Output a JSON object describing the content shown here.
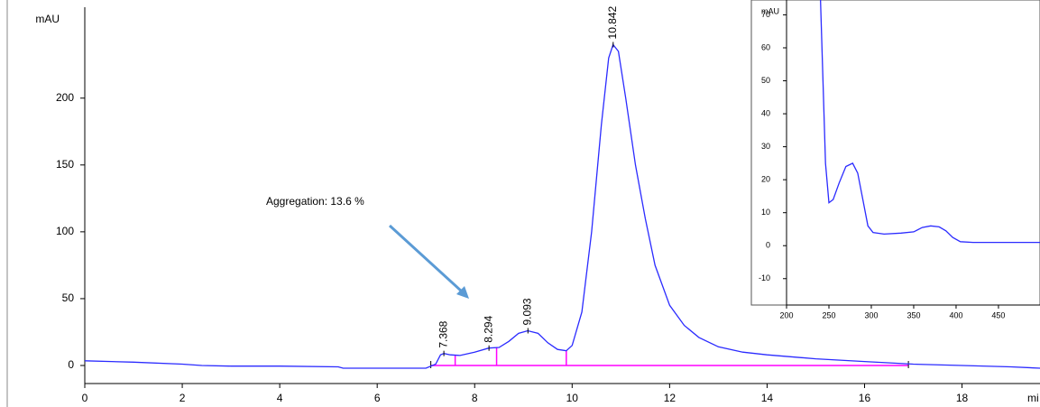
{
  "chart_data": [
    {
      "type": "line",
      "ylabel": "mAU",
      "xlabel": "mi",
      "x": [
        0,
        1,
        2,
        2.4,
        3,
        4,
        5.2,
        5.3,
        6.5,
        7,
        7.2,
        7.3,
        7.37,
        7.5,
        7.7,
        8,
        8.29,
        8.5,
        8.7,
        8.9,
        9.09,
        9.3,
        9.5,
        9.7,
        9.88,
        10,
        10.2,
        10.4,
        10.6,
        10.75,
        10.84,
        10.95,
        11.1,
        11.3,
        11.5,
        11.7,
        12,
        12.3,
        12.6,
        13,
        13.5,
        14,
        15,
        16,
        17,
        18,
        19,
        19.6
      ],
      "series": [
        {
          "color": "#2b2bff",
          "values": [
            3.5,
            2.5,
            1,
            0,
            -0.5,
            -0.5,
            -1,
            -2,
            -2,
            -2,
            1,
            8,
            9,
            8,
            7.5,
            10,
            13,
            13.5,
            18,
            24,
            26,
            24,
            17,
            12,
            11,
            15,
            40,
            100,
            180,
            230,
            240,
            235,
            200,
            150,
            110,
            75,
            45,
            30,
            21,
            14,
            10,
            8,
            5,
            3,
            1,
            0,
            -1,
            -2
          ]
        }
      ],
      "peaks": {
        "x": [
          7.368,
          8.294,
          9.093,
          10.842
        ],
        "y": [
          9,
          13,
          26,
          240
        ]
      },
      "baseline": {
        "x": [
          7.1,
          16.9
        ],
        "color": "#ff00ff"
      },
      "drop_lines": {
        "x": [
          7.6,
          8.45,
          9.88
        ],
        "y": [
          7.6,
          13.5,
          11
        ]
      },
      "annotation": "Aggregation: 13.6 %",
      "xlim": [
        0,
        19.6
      ],
      "ylim": [
        -13.5,
        268
      ],
      "xticks": [
        0,
        2,
        4,
        6,
        8,
        10,
        12,
        14,
        16,
        18
      ],
      "yticks": [
        0,
        50,
        100,
        150,
        200
      ]
    },
    {
      "type": "line",
      "ylabel": "mAU",
      "x": [
        238,
        240,
        243,
        246,
        250,
        255,
        262,
        270,
        278,
        284,
        290,
        296,
        302,
        315,
        335,
        350,
        360,
        370,
        380,
        388,
        396,
        405,
        420,
        499
      ],
      "series": [
        {
          "color": "#2b2bff",
          "values": [
            90,
            75,
            50,
            25,
            13,
            14,
            19,
            24,
            25,
            22,
            14,
            6,
            4,
            3.5,
            3.8,
            4.2,
            5.5,
            6,
            5.7,
            4.5,
            2.5,
            1.2,
            1,
            1
          ]
        }
      ],
      "xlim": [
        200,
        499
      ],
      "ylim": [
        -18,
        74.5
      ],
      "xticks": [
        200,
        250,
        300,
        350,
        400,
        450
      ],
      "yticks": [
        -10,
        0,
        10,
        20,
        30,
        40,
        50,
        60,
        70
      ]
    }
  ]
}
